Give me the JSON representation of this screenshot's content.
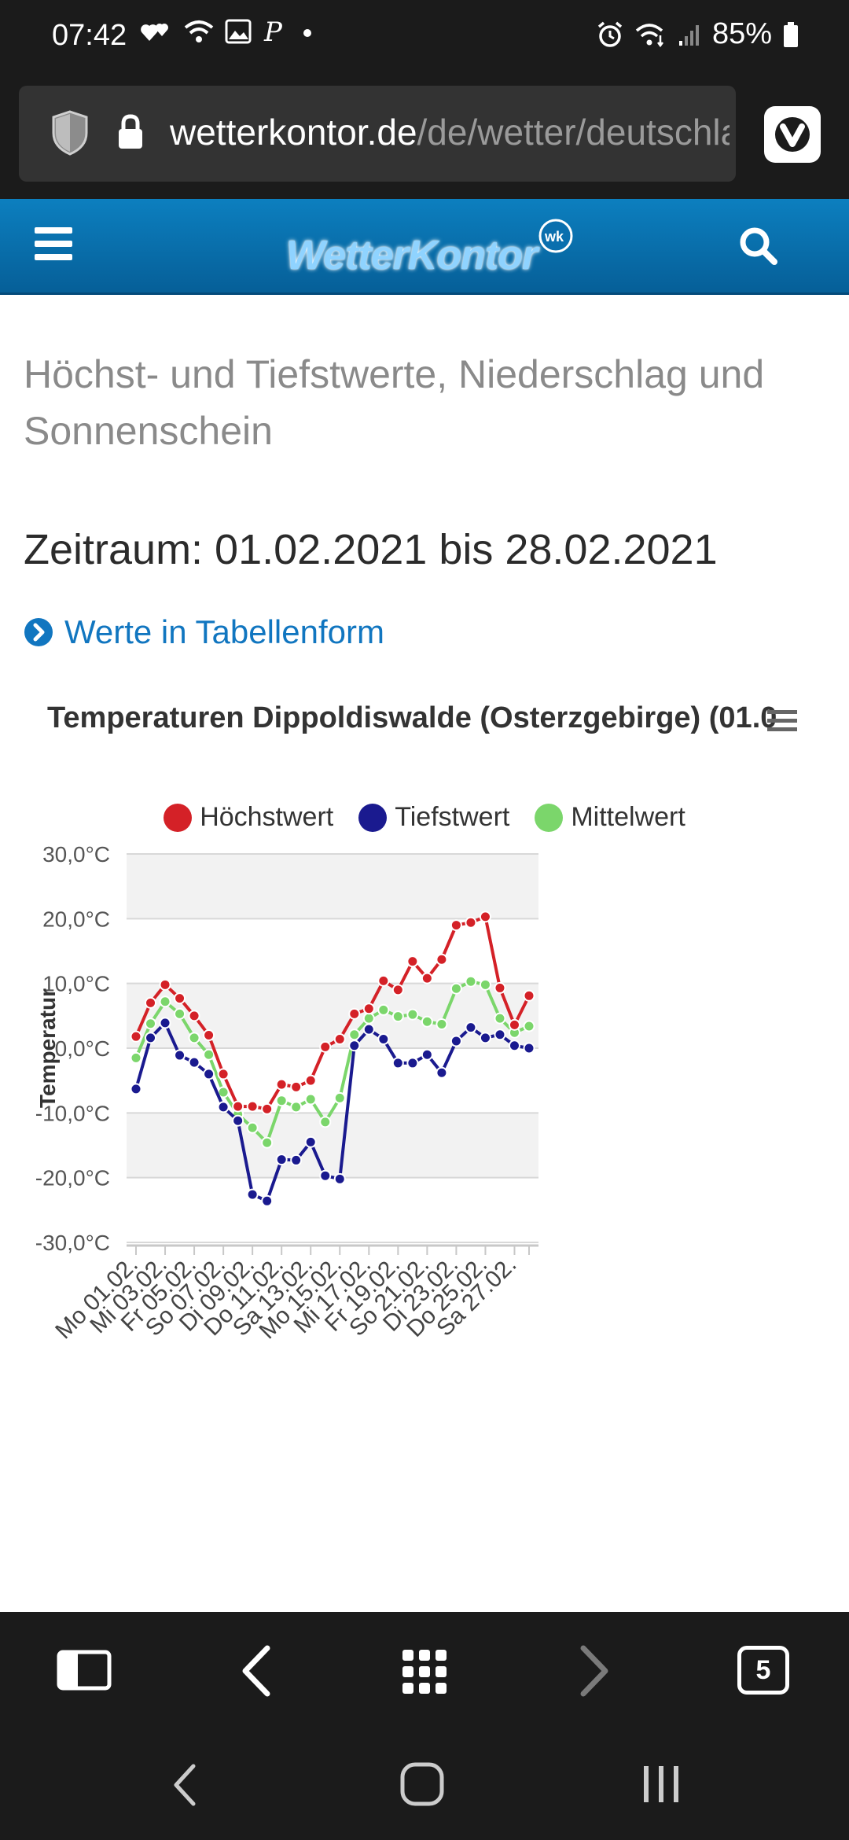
{
  "status_bar": {
    "time": "07:42",
    "battery": "85%"
  },
  "browser": {
    "url_domain": "wetterkontor.de",
    "url_path": "/de/wetter/deutschland/...",
    "tab_count": "5"
  },
  "site": {
    "logo": "WetterKontor"
  },
  "content": {
    "title": "Höchst- und Tiefstwerte, Niederschlag und Sonnenschein",
    "period": "Zeitraum: 01.02.2021 bis 28.02.2021",
    "table_link": "Werte in Tabellenform"
  },
  "chart_data": {
    "type": "line",
    "title": "Temperaturen Dippoldiswalde (Osterzgebirge) (01.0",
    "ylabel": "Temperatur",
    "ylim": [
      -30,
      30
    ],
    "y_ticks": [
      "30,0°C",
      "20,0°C",
      "10,0°C",
      "0,0°C",
      "-10,0°C",
      "-20,0°C",
      "-30,0°C"
    ],
    "y_tick_values": [
      30,
      20,
      10,
      0,
      -10,
      -20,
      -30
    ],
    "x_labels": [
      "Mo 01.02.",
      "Mi 03.02.",
      "Fr 05.02.",
      "So 07.02.",
      "Di 09.02.",
      "Do 11.02.",
      "Sa 13.02.",
      "Mo 15.02.",
      "Mi 17.02.",
      "Fr 19.02.",
      "So 21.02.",
      "Di 23.02.",
      "Do 25.02.",
      "Sa 27.02."
    ],
    "series": [
      {
        "name": "Höchstwert",
        "color": "#d42127",
        "values": [
          1.8,
          7.0,
          9.8,
          7.7,
          5.0,
          2.0,
          -4.0,
          -9.0,
          -9.0,
          -9.4,
          -5.6,
          -6.0,
          -5.0,
          0.2,
          1.4,
          5.3,
          6.1,
          10.4,
          9.0,
          13.4,
          10.8,
          13.7,
          19.0,
          19.4,
          20.3,
          9.3,
          3.6,
          8.1
        ]
      },
      {
        "name": "Tiefstwert",
        "color": "#1a1a8f",
        "values": [
          -6.3,
          1.6,
          3.9,
          -1.1,
          -2.2,
          -4.0,
          -9.1,
          -11.2,
          -22.6,
          -23.6,
          -17.2,
          -17.3,
          -14.5,
          -19.7,
          -20.2,
          0.4,
          2.9,
          1.4,
          -2.3,
          -2.3,
          -1.0,
          -3.8,
          1.1,
          3.2,
          1.6,
          2.1,
          0.4,
          0.0
        ]
      },
      {
        "name": "Mittelwert",
        "color": "#7bd66b",
        "values": [
          -1.5,
          3.8,
          7.2,
          5.3,
          1.6,
          -1.0,
          -6.8,
          -10.2,
          -12.3,
          -14.6,
          -8.1,
          -9.1,
          -7.9,
          -11.4,
          -7.7,
          2.1,
          4.6,
          5.9,
          4.9,
          5.2,
          4.1,
          3.7,
          9.2,
          10.3,
          9.8,
          4.6,
          2.4,
          3.4
        ]
      }
    ]
  }
}
